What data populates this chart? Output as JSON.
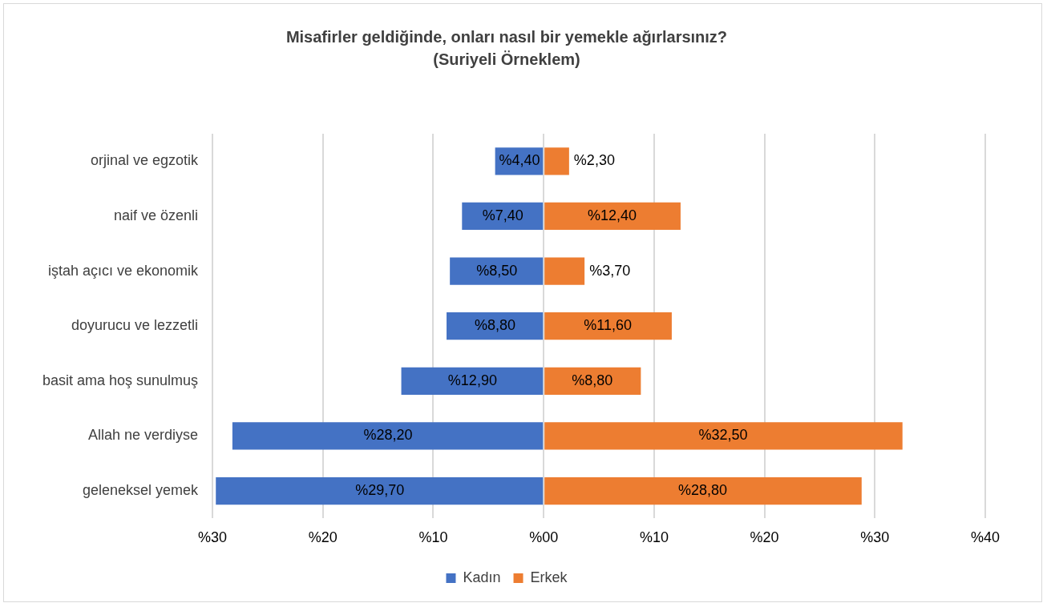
{
  "chart_data": {
    "type": "bar",
    "orientation": "horizontal",
    "title": "Misafirler geldiğinde, onları nasıl bir yemekle ağırlarsınız?",
    "subtitle": "(Suriyeli Örneklem)",
    "categories": [
      "orjinal ve egzotik",
      "naif ve özenli",
      "iştah açıcı ve ekonomik",
      "doyurucu ve lezzetli",
      "basit ama hoş sunulmuş",
      "Allah ne verdiyse",
      "geleneksel yemek"
    ],
    "series": [
      {
        "name": "Kadın",
        "color": "#4472c4",
        "values": [
          4.4,
          7.4,
          8.5,
          8.8,
          12.9,
          28.2,
          29.7
        ],
        "base": [
          -4.4,
          -7.4,
          -8.5,
          -8.8,
          -12.9,
          -28.2,
          -29.7
        ],
        "value_labels": [
          "%4,40",
          "%7,40",
          "%8,50",
          "%8,80",
          "%12,90",
          "%28,20",
          "%29,70"
        ]
      },
      {
        "name": "Erkek",
        "color": "#ed7d31",
        "values": [
          2.3,
          12.4,
          3.7,
          11.6,
          8.8,
          32.5,
          28.8
        ],
        "value_labels": [
          "%2,30",
          "%12,40",
          "%3,70",
          "%11,60",
          "%8,80",
          "%32,50",
          "%28,80"
        ]
      }
    ],
    "xlim": [
      -30,
      40
    ],
    "xticks": [
      {
        "value": -30,
        "label": "%30"
      },
      {
        "value": -20,
        "label": "%20"
      },
      {
        "value": -10,
        "label": "%10"
      },
      {
        "value": 0,
        "label": "%00"
      },
      {
        "value": 10,
        "label": "%10"
      },
      {
        "value": 20,
        "label": "%20"
      },
      {
        "value": 30,
        "label": "%30"
      },
      {
        "value": 40,
        "label": "%40"
      }
    ],
    "grid": "x",
    "legend": "bottom"
  }
}
